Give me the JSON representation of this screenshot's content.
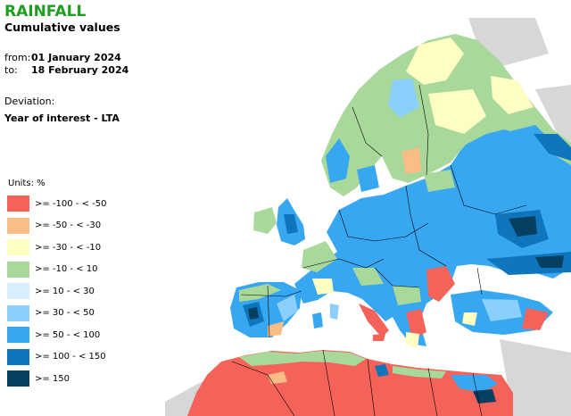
{
  "header": {
    "title": "RAINFALL",
    "subtitle": "Cumulative values",
    "from_label": "from:",
    "from_date": "01 January 2024",
    "to_label": "to:",
    "to_date": "18 February 2024",
    "deviation_label": "Deviation:",
    "deviation_value": "Year of interest - LTA"
  },
  "legend": {
    "units": "Units: %",
    "items": [
      {
        "label": ">= -100 - < -50",
        "color": "#f4625a"
      },
      {
        "label": ">= -50 - < -30",
        "color": "#fbbd86"
      },
      {
        "label": ">= -30 - < -10",
        "color": "#fefdc2"
      },
      {
        "label": ">= -10 - < 10",
        "color": "#a8d99a"
      },
      {
        "label": ">= 10 - < 30",
        "color": "#d7effc"
      },
      {
        "label": ">= 30 - < 50",
        "color": "#8ad0fa"
      },
      {
        "label": ">= 50 - < 100",
        "color": "#38a7f2"
      },
      {
        "label": ">= 100 - < 150",
        "color": "#0f75bd"
      },
      {
        "label": ">= 150",
        "color": "#063f60"
      }
    ]
  },
  "colors": {
    "title": "#1e9e1e",
    "nodata": "#d7d7d7",
    "water": "#ffffff",
    "border": "#000000"
  }
}
